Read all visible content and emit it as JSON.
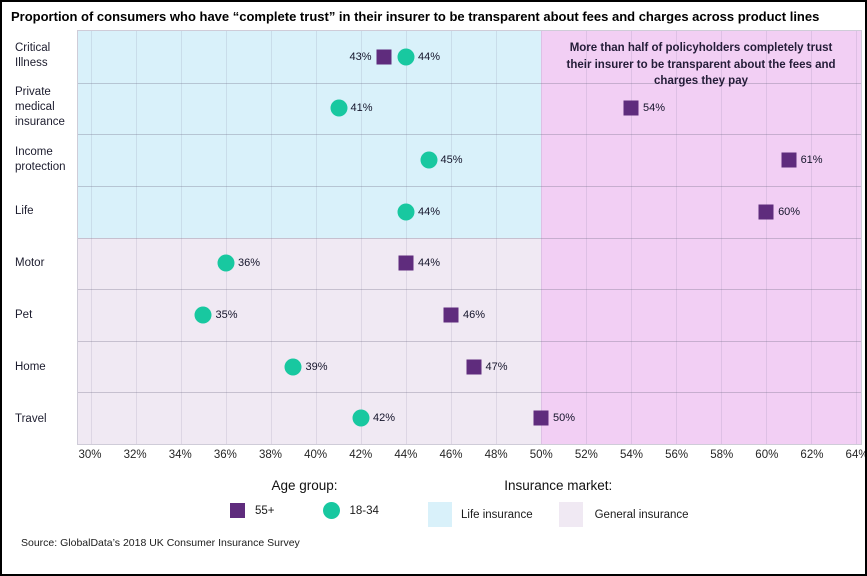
{
  "title": "Proportion of consumers who have “complete trust” in their insurer to be transparent about fees and charges across product lines",
  "annotation": "More than half of policyholders completely trust their insurer to be transparent about the fees and charges they pay",
  "source": "Source: GlobalData’s 2018 UK Consumer Insurance Survey",
  "legend": {
    "age_group": {
      "title": "Age group:",
      "items": [
        {
          "label": "55+",
          "marker": "square",
          "color_key": "age_55_plus"
        },
        {
          "label": "18-34",
          "marker": "circle",
          "color_key": "age_18_34"
        }
      ]
    },
    "market": {
      "title": "Insurance market:",
      "items": [
        {
          "label": "Life insurance",
          "color_key": "life_insurance_bg"
        },
        {
          "label": "General insurance",
          "color_key": "general_insurance_bg"
        }
      ]
    }
  },
  "colors": {
    "age_55_plus": "#5f2c7d",
    "age_18_34": "#18c8a0",
    "life_insurance_bg": "#d9f1fa",
    "general_insurance_bg": "#f0e9f3",
    "over_half_bg": "#f2cff4"
  },
  "chart_data": {
    "type": "scatter",
    "title": "Proportion of consumers who have “complete trust” in their insurer to be transparent about fees and charges across product lines",
    "xlabel": "",
    "ylabel": "",
    "xlim": [
      30,
      64
    ],
    "x_tick_step": 2,
    "x_tick_suffix": "%",
    "grid": true,
    "threshold_value": 50,
    "categories": [
      "Critical Illness",
      "Private medical insurance",
      "Income protection",
      "Life",
      "Motor",
      "Pet",
      "Home",
      "Travel"
    ],
    "category_markets": [
      "life",
      "life",
      "life",
      "life",
      "general",
      "general",
      "general",
      "general"
    ],
    "series": [
      {
        "name": "55+",
        "marker": "square",
        "color_key": "age_55_plus",
        "values": [
          43,
          54,
          61,
          60,
          44,
          46,
          47,
          50
        ]
      },
      {
        "name": "18-34",
        "marker": "circle",
        "color_key": "age_18_34",
        "values": [
          44,
          41,
          45,
          44,
          36,
          35,
          39,
          42
        ]
      }
    ],
    "label_overrides": {
      "55+": {
        "Critical Illness": "left"
      }
    }
  }
}
